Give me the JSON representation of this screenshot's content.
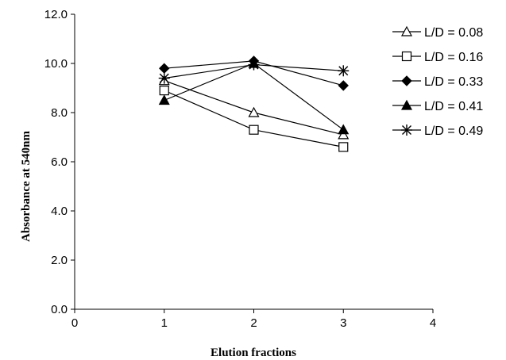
{
  "chart_data": {
    "type": "line",
    "title": "",
    "xlabel": "Elution fractions",
    "ylabel": "Absorbance at 540nm",
    "xlim": [
      0,
      4
    ],
    "ylim": [
      0,
      12
    ],
    "x_ticks": [
      "0",
      "1",
      "2",
      "3",
      "4"
    ],
    "y_ticks": [
      "0.0",
      "2.0",
      "4.0",
      "6.0",
      "8.0",
      "10.0",
      "12.0"
    ],
    "grid": false,
    "legend_position": "right",
    "x": [
      1,
      2,
      3
    ],
    "series": [
      {
        "name": "L/D = 0.08",
        "marker": "triangle-open",
        "values": [
          9.3,
          8.0,
          7.1
        ]
      },
      {
        "name": "L/D = 0.16",
        "marker": "square-open",
        "values": [
          8.9,
          7.3,
          6.6
        ]
      },
      {
        "name": "L/D = 0.33",
        "marker": "diamond-filled",
        "values": [
          9.8,
          10.1,
          9.1
        ]
      },
      {
        "name": "L/D = 0.41",
        "marker": "triangle-filled",
        "values": [
          8.5,
          10.0,
          7.3
        ]
      },
      {
        "name": "L/D = 0.49",
        "marker": "asterisk",
        "values": [
          9.4,
          9.95,
          9.7
        ]
      }
    ],
    "colors": {
      "line": "#000000",
      "fill": "#000000",
      "background": "#ffffff"
    }
  }
}
